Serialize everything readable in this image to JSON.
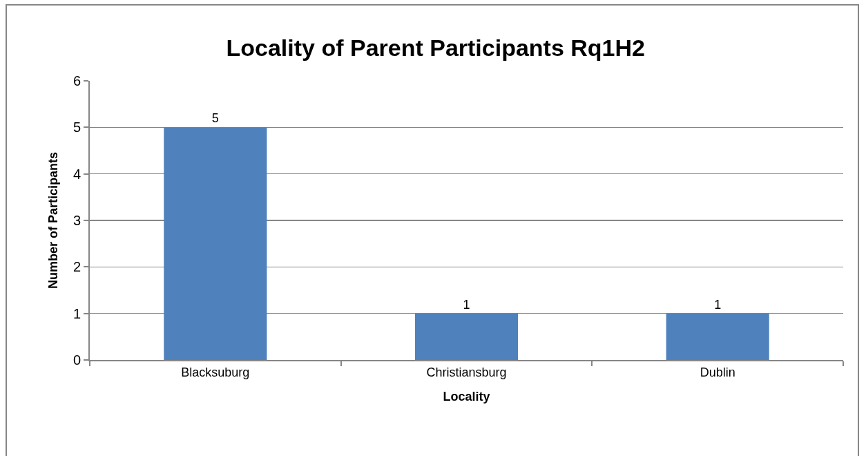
{
  "chart_data": {
    "type": "bar",
    "title": "Locality of Parent Participants Rq1H2",
    "xlabel": "Locality",
    "ylabel": "Number of Participants",
    "categories": [
      "Blacksuburg",
      "Christiansburg",
      "Dublin"
    ],
    "values": [
      5,
      1,
      1
    ],
    "color": "#4f81bd",
    "ylim": [
      0,
      6
    ],
    "yticks": [
      0,
      1,
      2,
      3,
      4,
      5,
      6
    ],
    "grid": "y",
    "data_labels": true
  }
}
